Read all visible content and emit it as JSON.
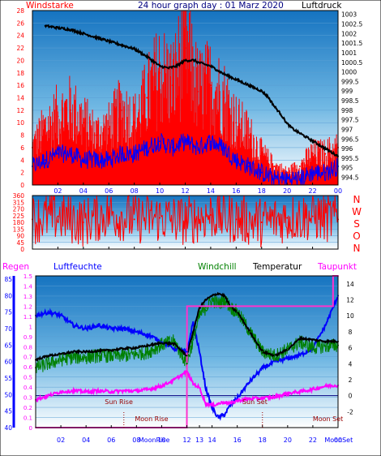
{
  "colors": {
    "red": "#ff0000",
    "blue": "#0000ff",
    "black": "#000000",
    "green": "#008000",
    "magenta": "#ff00ff",
    "pink_line": "#ff33cc",
    "sun_text": "#990000",
    "title_navy": "#000080"
  },
  "chart_data": [
    {
      "type": "line",
      "title": "24 hour graph day : 01 Marz 2020",
      "left_label": "Windstarke",
      "right_label": "Luftdruck",
      "x_ticks": [
        "02",
        "04",
        "06",
        "08",
        "10",
        "12",
        "14",
        "16",
        "18",
        "20",
        "22",
        "00"
      ],
      "y_left_ticks": [
        0,
        2,
        4,
        6,
        8,
        10,
        12,
        14,
        16,
        18,
        20,
        22,
        24,
        26,
        28
      ],
      "y_left_range": [
        0,
        28
      ],
      "y_right_ticks": [
        994.5,
        995,
        995.5,
        996,
        996.5,
        997,
        997.5,
        998,
        998.5,
        999,
        999.5,
        1000,
        1000.5,
        1001,
        1001.5,
        1002,
        1002.5,
        1003
      ],
      "y_right_range": [
        994.1,
        1003.2
      ],
      "series": [
        {
          "color": "black",
          "axis": "right",
          "x": [
            1,
            2,
            3,
            4,
            5,
            6,
            7,
            8,
            9,
            10,
            10.7,
            11.3,
            12,
            12.7,
            13,
            13.5,
            14,
            14.5,
            15,
            16,
            17,
            18,
            18.5,
            19,
            19.5,
            20,
            20.5,
            21,
            21.5,
            22,
            22.5,
            23,
            23.5,
            24
          ],
          "y": [
            1002.4,
            1002.3,
            1002.2,
            1002.0,
            1001.8,
            1001.6,
            1001.4,
            1001.2,
            1000.8,
            1000.3,
            1000.2,
            1000.3,
            1000.6,
            1000.6,
            1000.5,
            1000.4,
            1000.3,
            1000.1,
            999.9,
            999.6,
            999.3,
            999.0,
            998.7,
            998.2,
            997.8,
            997.3,
            997.0,
            996.8,
            996.6,
            996.4,
            996.2,
            996.0,
            995.8,
            995.6
          ]
        },
        {
          "color": "red",
          "axis": "left",
          "description": "wind gust",
          "x": [
            0,
            1,
            2,
            3,
            4,
            5,
            6,
            7,
            8,
            9,
            10,
            11,
            12,
            13,
            14,
            15,
            16,
            17,
            18,
            19,
            20,
            21,
            22,
            23,
            24
          ],
          "y": [
            6,
            9,
            11,
            12,
            10,
            8,
            9,
            12,
            10,
            14,
            18,
            16,
            22,
            15,
            16,
            14,
            10,
            8,
            5,
            3,
            2,
            3,
            5,
            5,
            6
          ]
        },
        {
          "color": "blue",
          "axis": "left",
          "description": "wind average",
          "x": [
            0,
            1,
            2,
            3,
            4,
            5,
            6,
            7,
            8,
            9,
            10,
            11,
            12,
            13,
            14,
            15,
            16,
            17,
            18,
            19,
            20,
            21,
            22,
            23,
            24
          ],
          "y": [
            3,
            4,
            5,
            5,
            4,
            4,
            4,
            5,
            5,
            6,
            7,
            6,
            7,
            6,
            7,
            6,
            4,
            3,
            2,
            1,
            1,
            1,
            2,
            2,
            3
          ]
        }
      ]
    },
    {
      "type": "scatter",
      "right_label_letters": [
        "N",
        "W",
        "S",
        "O",
        "N"
      ],
      "y_left_ticks": [
        0,
        45,
        90,
        135,
        180,
        225,
        270,
        315,
        360
      ],
      "y_range": [
        0,
        360
      ],
      "series": [
        {
          "color": "red",
          "description": "wind direction",
          "x": [
            0,
            2,
            4,
            6,
            8,
            10,
            12,
            14,
            16,
            18,
            20,
            22,
            24
          ],
          "y": [
            200,
            220,
            180,
            240,
            200,
            210,
            190,
            230,
            200,
            180,
            210,
            220,
            200
          ]
        }
      ]
    },
    {
      "type": "line",
      "header_labels": {
        "regen": "Regen",
        "luftfeuchte": "Luftfeuchte",
        "windchill": "Windchill",
        "temperatur": "Temperatur",
        "taupunkt": "Taupunkt"
      },
      "x_ticks": [
        "02",
        "04",
        "06",
        "08",
        "10",
        "12",
        "13",
        "14",
        "16",
        "18",
        "20",
        "22",
        "00"
      ],
      "y_regen_ticks": [
        0,
        0.1,
        0.2,
        0.3,
        0.4,
        0.5,
        0.6,
        0.7,
        0.8,
        0.9,
        1,
        1.1,
        1.2,
        1.3,
        1.4,
        1.5
      ],
      "y_regen_range": [
        0,
        1.5
      ],
      "y_humidity_ticks": [
        40,
        45,
        50,
        55,
        60,
        65,
        70,
        75,
        80,
        85
      ],
      "y_humidity_range": [
        40,
        86
      ],
      "y_temp_ticks": [
        -2,
        0,
        2,
        4,
        6,
        8,
        10,
        12,
        14
      ],
      "y_temp_range": [
        -4,
        15
      ],
      "annotations": {
        "sun_rise": "Sun Rise",
        "moon_rise": "Moon Rise",
        "sun_set": "Sun Set",
        "moon_set": "Moon Set",
        "moonrise_tick": "MoonRise",
        "moonset_tick": "MoonSet"
      },
      "series": [
        {
          "color": "blue",
          "axis": "humidity",
          "x": [
            0,
            1,
            2,
            3,
            4,
            5,
            6,
            7,
            8,
            9,
            10,
            11,
            12,
            12.5,
            13,
            13.5,
            14,
            14.5,
            15,
            15.5,
            16,
            17,
            18,
            19,
            20,
            21,
            22,
            23,
            24
          ],
          "y": [
            74,
            75,
            74,
            71,
            70,
            71,
            70,
            70,
            69,
            68,
            66,
            64,
            63,
            72,
            63,
            52,
            46,
            43,
            44,
            47,
            49,
            54,
            58,
            60,
            61,
            62,
            64,
            71,
            80
          ]
        },
        {
          "color": "black",
          "axis": "temp",
          "x": [
            0,
            1,
            2,
            3,
            4,
            5,
            6,
            7,
            8,
            9,
            10,
            11,
            12,
            12.5,
            13,
            13.5,
            14,
            14.5,
            15,
            15.5,
            16,
            17,
            18,
            19,
            20,
            21,
            22,
            23,
            24
          ],
          "y": [
            4.5,
            5,
            5.2,
            5.5,
            5.5,
            5.6,
            5.7,
            5.9,
            6,
            6.3,
            6.6,
            6.5,
            5.0,
            8,
            11,
            12,
            12.5,
            12.8,
            12.5,
            11,
            10.5,
            8,
            5.5,
            5.0,
            5.8,
            7.2,
            7.0,
            6.8,
            6.8
          ]
        },
        {
          "color": "green",
          "axis": "temp",
          "x": [
            0,
            1,
            2,
            3,
            4,
            5,
            6,
            7,
            8,
            9,
            10,
            11,
            12,
            12.5,
            13,
            13.5,
            14,
            14.5,
            15,
            15.5,
            16,
            17,
            18,
            19,
            20,
            21,
            22,
            23,
            24
          ],
          "y": [
            3.5,
            4,
            4.5,
            4.8,
            4.8,
            5,
            5,
            5,
            5.2,
            5.5,
            6.4,
            6.8,
            4,
            7,
            10,
            11,
            12,
            11.5,
            12,
            11,
            10.5,
            8,
            5.5,
            5.0,
            5.8,
            6.7,
            6.0,
            6.2,
            6.3
          ]
        },
        {
          "color": "magenta",
          "axis": "temp",
          "x": [
            0,
            1,
            2,
            3,
            4,
            5,
            6,
            7,
            8,
            9,
            10,
            11,
            12,
            12.5,
            13,
            13.5,
            14,
            14.5,
            15,
            15.5,
            16,
            17,
            18,
            19,
            20,
            21,
            22,
            23,
            24
          ],
          "y": [
            -0.5,
            0,
            0.5,
            0.6,
            0.5,
            0.6,
            0.5,
            0.6,
            0.6,
            0.8,
            1.2,
            2,
            3.0,
            1.5,
            1,
            -1,
            -1.2,
            -1,
            -0.8,
            -1,
            -0.6,
            -0.4,
            -0.3,
            -0.2,
            0.3,
            0.5,
            0.8,
            1.2,
            1.3
          ]
        },
        {
          "color": "pink_line",
          "axis": "regen",
          "description": "rain total",
          "x": [
            0,
            12,
            12.01,
            23.6,
            23.61,
            24
          ],
          "y": [
            0,
            0,
            1.2,
            1.2,
            1.5,
            1.5
          ]
        }
      ]
    }
  ]
}
